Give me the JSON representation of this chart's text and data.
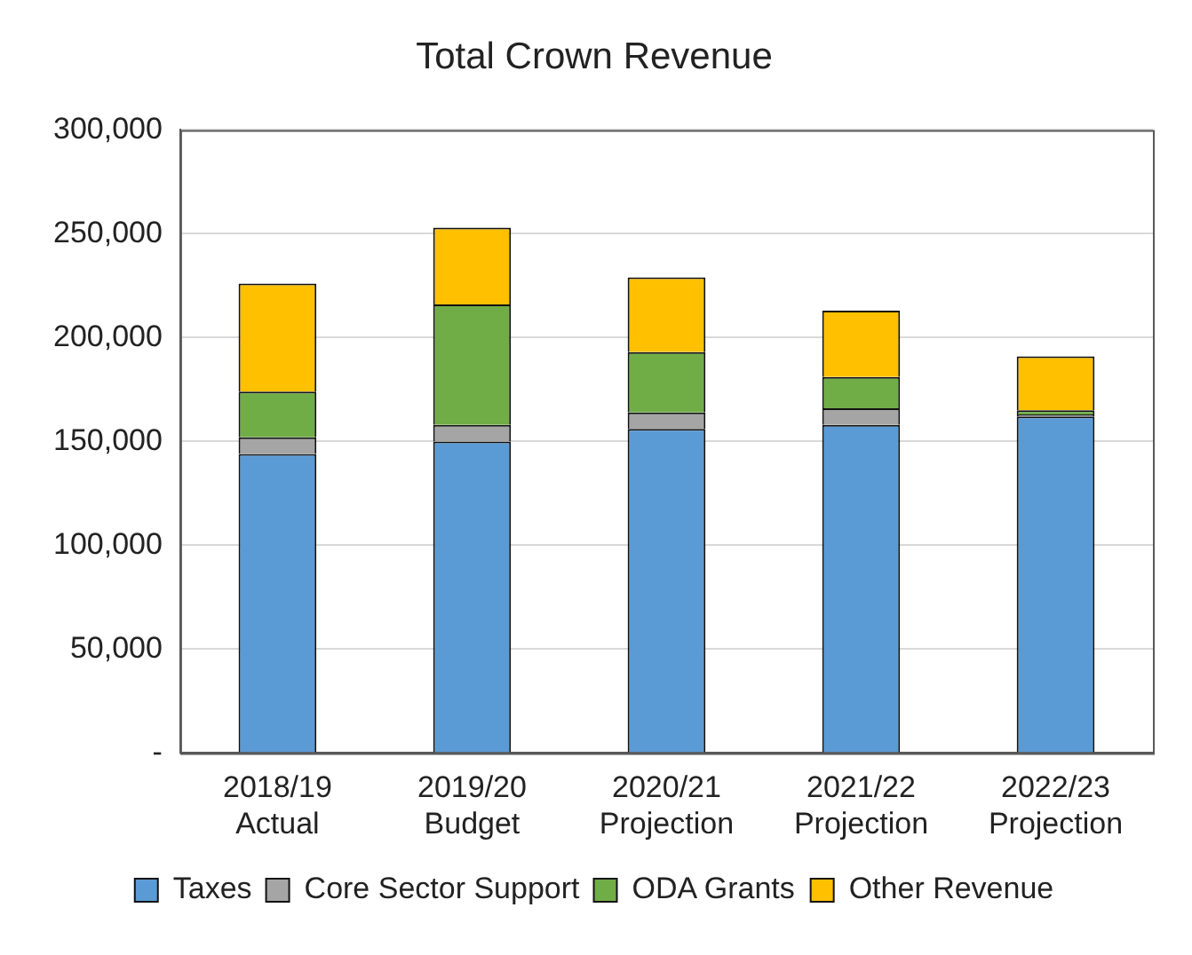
{
  "chart_data": {
    "type": "bar",
    "title": "Total Crown Revenue",
    "stacked": true,
    "categories": [
      "2018/19 Actual",
      "2019/20 Budget",
      "2020/21 Projection",
      "2021/22 Projection",
      "2022/23 Projection"
    ],
    "series": [
      {
        "name": "Taxes",
        "color": "#5b9bd5",
        "values": [
          144000,
          150000,
          156000,
          158000,
          162000
        ]
      },
      {
        "name": "Core Sector Support",
        "color": "#a5a5a5",
        "values": [
          8000,
          8000,
          8000,
          8000,
          1000
        ]
      },
      {
        "name": "ODA Grants",
        "color": "#70ad47",
        "values": [
          22000,
          58000,
          29000,
          15000,
          2000
        ]
      },
      {
        "name": "Other Revenue",
        "color": "#ffc000",
        "values": [
          52000,
          37000,
          36000,
          32000,
          26000
        ]
      }
    ],
    "ylim": [
      0,
      300000
    ],
    "yticks": [
      {
        "value": 0,
        "label": "-"
      },
      {
        "value": 50000,
        "label": "50,000"
      },
      {
        "value": 100000,
        "label": "100,000"
      },
      {
        "value": 150000,
        "label": "150,000"
      },
      {
        "value": 200000,
        "label": "200,000"
      },
      {
        "value": 250000,
        "label": "250,000"
      },
      {
        "value": 300000,
        "label": "300,000"
      }
    ],
    "grid": "y",
    "legend": "bottom"
  }
}
